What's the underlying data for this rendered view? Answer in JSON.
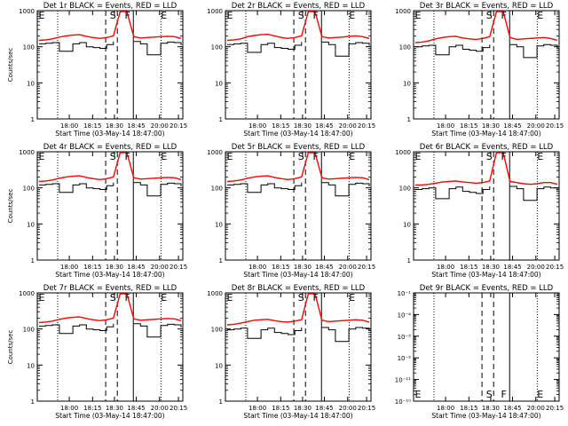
{
  "window": {
    "background": "#ffffff"
  },
  "chart_data": [
    {
      "type": "line",
      "title": "Det 1r BLACK = Events, RED = LLD",
      "xlabel": "Start Time (03-May-14 18:47:00)",
      "ylabel": "Counts/sec",
      "xticks": [
        "18:00",
        "18:15",
        "18:30",
        "18:45",
        "20:00",
        "20:15"
      ],
      "ylog": true,
      "ylim": [
        1,
        1000
      ],
      "yticks": [
        "1",
        "10",
        "100",
        "1000"
      ],
      "markers": [
        "E",
        "S",
        "F",
        "E"
      ],
      "series": [
        {
          "color": "#ff0000",
          "values": [
            150,
            155,
            165,
            185,
            200,
            210,
            215,
            195,
            180,
            170,
            180,
            200,
            1000,
            1000,
            190,
            175,
            180,
            185,
            190,
            195,
            190,
            170
          ]
        },
        {
          "color": "#000000",
          "values": [
            120,
            125,
            130,
            75,
            75,
            120,
            130,
            100,
            95,
            90,
            115,
            140,
            null,
            null,
            140,
            120,
            60,
            60,
            125,
            135,
            130,
            110
          ]
        }
      ]
    },
    {
      "type": "line",
      "title": "Det 2r BLACK = Events, RED = LLD",
      "xlabel": "Start Time (03-May-14 18:47:00)",
      "ylabel": "",
      "xticks": [
        "18:00",
        "18:15",
        "18:30",
        "18:45",
        "20:00",
        "20:15"
      ],
      "ylog": true,
      "ylim": [
        1,
        1000
      ],
      "yticks": [
        "1",
        "10",
        "100",
        "1000"
      ],
      "markers": [
        "E",
        "S",
        "F",
        "E"
      ],
      "series": [
        {
          "color": "#ff0000",
          "values": [
            150,
            155,
            165,
            190,
            205,
            215,
            220,
            200,
            180,
            170,
            180,
            200,
            1000,
            1000,
            190,
            175,
            180,
            185,
            195,
            200,
            190,
            170
          ]
        },
        {
          "color": "#000000",
          "values": [
            115,
            120,
            125,
            70,
            70,
            115,
            125,
            95,
            90,
            85,
            110,
            135,
            null,
            null,
            135,
            115,
            55,
            55,
            120,
            130,
            125,
            105
          ]
        }
      ]
    },
    {
      "type": "line",
      "title": "Det 3r BLACK = Events, RED = LLD",
      "xlabel": "Start Time (03-May-14 18:47:00)",
      "ylabel": "",
      "xticks": [
        "18:00",
        "18:15",
        "18:30",
        "18:45",
        "20:00",
        "20:15"
      ],
      "ylog": true,
      "ylim": [
        1,
        1000
      ],
      "yticks": [
        "1",
        "10",
        "100",
        "1000"
      ],
      "markers": [
        "E",
        "S",
        "F",
        "E"
      ],
      "series": [
        {
          "color": "#ff0000",
          "values": [
            130,
            135,
            145,
            165,
            180,
            190,
            195,
            175,
            165,
            160,
            170,
            190,
            1000,
            1000,
            180,
            160,
            165,
            170,
            175,
            180,
            170,
            150
          ]
        },
        {
          "color": "#000000",
          "values": [
            100,
            105,
            110,
            60,
            60,
            100,
            110,
            85,
            80,
            75,
            95,
            115,
            null,
            null,
            115,
            100,
            50,
            50,
            105,
            115,
            110,
            90
          ]
        }
      ]
    },
    {
      "type": "line",
      "title": "Det 4r BLACK = Events, RED = LLD",
      "xlabel": "Start Time (03-May-14 18:47:00)",
      "ylabel": "Counts/sec",
      "xticks": [
        "18:00",
        "18:15",
        "18:30",
        "18:45",
        "20:00",
        "20:15"
      ],
      "ylog": true,
      "ylim": [
        1,
        1000
      ],
      "yticks": [
        "1",
        "10",
        "100",
        "1000"
      ],
      "markers": [
        "E",
        "S",
        "F",
        "E"
      ],
      "series": [
        {
          "color": "#ff0000",
          "values": [
            150,
            155,
            165,
            185,
            200,
            210,
            215,
            195,
            180,
            170,
            180,
            200,
            1000,
            1000,
            190,
            175,
            180,
            185,
            190,
            195,
            190,
            170
          ]
        },
        {
          "color": "#000000",
          "values": [
            120,
            125,
            130,
            75,
            75,
            120,
            130,
            100,
            95,
            90,
            115,
            140,
            null,
            null,
            140,
            120,
            60,
            60,
            125,
            135,
            130,
            110
          ]
        }
      ]
    },
    {
      "type": "line",
      "title": "Det 5r BLACK = Events, RED = LLD",
      "xlabel": "Start Time (03-May-14 18:47:00)",
      "ylabel": "",
      "xticks": [
        "18:00",
        "18:15",
        "18:30",
        "18:45",
        "20:00",
        "20:15"
      ],
      "ylog": true,
      "ylim": [
        1,
        1000
      ],
      "yticks": [
        "1",
        "10",
        "100",
        "1000"
      ],
      "markers": [
        "E",
        "S",
        "F",
        "E"
      ],
      "series": [
        {
          "color": "#ff0000",
          "values": [
            150,
            155,
            165,
            185,
            200,
            210,
            215,
            195,
            180,
            170,
            180,
            200,
            1000,
            1000,
            190,
            175,
            180,
            185,
            190,
            195,
            190,
            170
          ]
        },
        {
          "color": "#000000",
          "values": [
            120,
            125,
            130,
            75,
            75,
            120,
            130,
            100,
            95,
            90,
            115,
            140,
            null,
            null,
            140,
            120,
            60,
            60,
            125,
            135,
            130,
            110
          ]
        }
      ]
    },
    {
      "type": "line",
      "title": "Det 6r BLACK = Events, RED = LLD",
      "xlabel": "Start Time (03-May-14 18:47:00)",
      "ylabel": "",
      "xticks": [
        "18:00",
        "18:15",
        "18:30",
        "18:45",
        "20:00",
        "20:15"
      ],
      "ylog": true,
      "ylim": [
        1,
        1000
      ],
      "yticks": [
        "1",
        "10",
        "100",
        "1000"
      ],
      "markers": [
        "E",
        "S",
        "F",
        "E"
      ],
      "series": [
        {
          "color": "#ff0000",
          "values": [
            120,
            120,
            125,
            135,
            145,
            150,
            155,
            145,
            140,
            135,
            140,
            155,
            1000,
            1000,
            150,
            140,
            130,
            125,
            130,
            140,
            140,
            125
          ]
        },
        {
          "color": "#000000",
          "values": [
            90,
            95,
            100,
            50,
            50,
            95,
            105,
            80,
            75,
            70,
            90,
            110,
            null,
            null,
            110,
            95,
            45,
            45,
            95,
            105,
            100,
            85
          ]
        }
      ]
    },
    {
      "type": "line",
      "title": "Det 7r BLACK = Events, RED = LLD",
      "xlabel": "Start Time (03-May-14 18:47:00)",
      "ylabel": "Counts/sec",
      "xticks": [
        "18:00",
        "18:15",
        "18:30",
        "18:45",
        "20:00",
        "20:15"
      ],
      "ylog": true,
      "ylim": [
        1,
        1000
      ],
      "yticks": [
        "1",
        "10",
        "100",
        "1000"
      ],
      "markers": [
        "E",
        "S",
        "F",
        "E"
      ],
      "series": [
        {
          "color": "#ff0000",
          "values": [
            150,
            155,
            165,
            185,
            200,
            210,
            215,
            195,
            180,
            170,
            180,
            200,
            1000,
            1000,
            190,
            175,
            180,
            185,
            190,
            195,
            190,
            170
          ]
        },
        {
          "color": "#000000",
          "values": [
            120,
            125,
            130,
            75,
            75,
            120,
            130,
            100,
            95,
            90,
            115,
            140,
            null,
            null,
            140,
            120,
            60,
            60,
            125,
            135,
            130,
            110
          ]
        }
      ]
    },
    {
      "type": "line",
      "title": "Det 8r BLACK = Events, RED = LLD",
      "xlabel": "Start Time (03-May-14 18:47:00)",
      "ylabel": "",
      "xticks": [
        "18:00",
        "18:15",
        "18:30",
        "18:45",
        "20:00",
        "20:15"
      ],
      "ylog": true,
      "ylim": [
        1,
        1000
      ],
      "yticks": [
        "1",
        "10",
        "100",
        "1000"
      ],
      "markers": [
        "E",
        "S",
        "F",
        "E"
      ],
      "series": [
        {
          "color": "#ff0000",
          "values": [
            130,
            135,
            145,
            160,
            175,
            180,
            185,
            170,
            160,
            155,
            165,
            180,
            1000,
            1000,
            175,
            160,
            165,
            170,
            175,
            180,
            175,
            155
          ]
        },
        {
          "color": "#000000",
          "values": [
            95,
            100,
            105,
            55,
            55,
            95,
            105,
            80,
            75,
            70,
            90,
            110,
            null,
            null,
            110,
            95,
            45,
            45,
            100,
            110,
            105,
            90
          ]
        }
      ]
    },
    {
      "type": "line",
      "title": "Det 9r BLACK = Events, RED = LLD",
      "xlabel": "Start Time (03-May-14 18:47:00)",
      "ylabel": "",
      "xticks": [
        "18:00",
        "18:15",
        "18:30",
        "18:45",
        "20:00",
        "20:15"
      ],
      "ylog": true,
      "ylim": [
        1e-10,
        0.1
      ],
      "yticks": [
        "10⁻¹⁰",
        "10⁻¹¹",
        "10⁻²",
        "10⁻³",
        "10⁻⁴",
        "10⁻¹"
      ],
      "markers": [
        "E",
        "S",
        "F",
        "E"
      ],
      "series": []
    }
  ]
}
